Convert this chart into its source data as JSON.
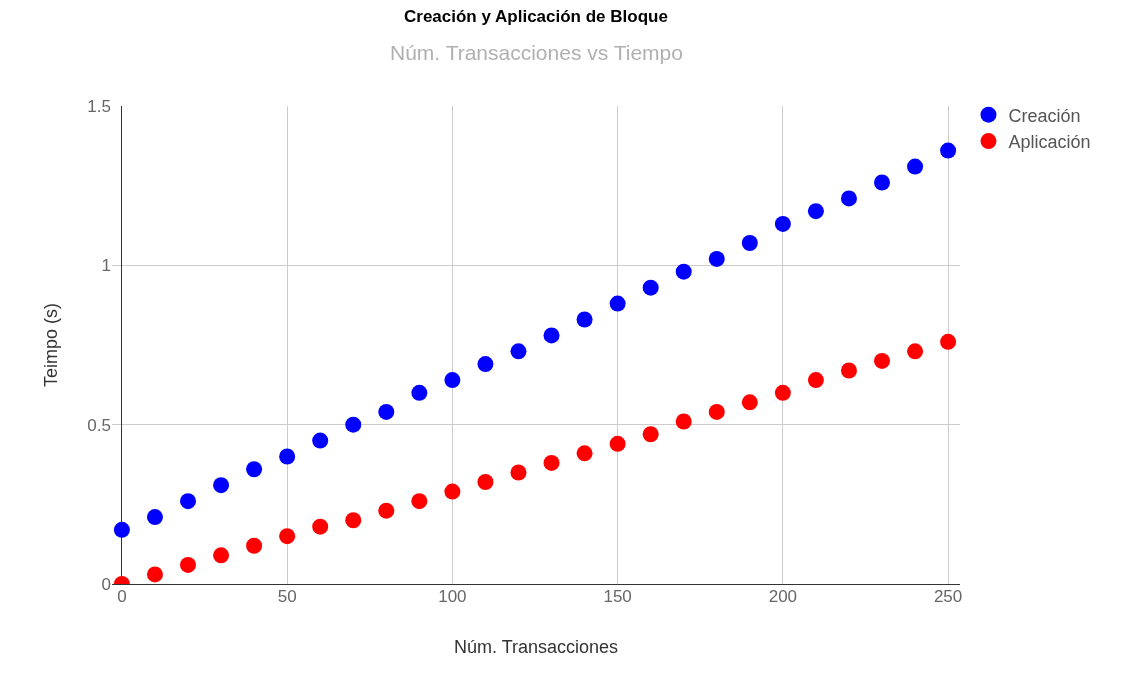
{
  "chart_data": {
    "type": "scatter",
    "title": "Creación y Aplicación de Bloque",
    "subtitle": "Núm. Transacciones vs Tiempo",
    "xlabel": "Núm. Transacciones",
    "ylabel": "Teimpo (s)",
    "x": [
      0,
      10,
      20,
      30,
      40,
      50,
      60,
      70,
      80,
      90,
      100,
      110,
      120,
      130,
      140,
      150,
      160,
      170,
      180,
      190,
      200,
      210,
      220,
      230,
      240,
      250
    ],
    "series": [
      {
        "name": "Creación",
        "color": "#0000ff",
        "values": [
          0.17,
          0.21,
          0.26,
          0.31,
          0.36,
          0.4,
          0.45,
          0.5,
          0.54,
          0.6,
          0.64,
          0.69,
          0.73,
          0.78,
          0.83,
          0.88,
          0.93,
          0.98,
          1.02,
          1.07,
          1.13,
          1.17,
          1.21,
          1.26,
          1.31,
          1.36
        ]
      },
      {
        "name": "Aplicación",
        "color": "#ff0000",
        "values": [
          0.0,
          0.03,
          0.06,
          0.09,
          0.12,
          0.15,
          0.18,
          0.2,
          0.23,
          0.26,
          0.29,
          0.32,
          0.35,
          0.38,
          0.41,
          0.44,
          0.47,
          0.51,
          0.54,
          0.57,
          0.6,
          0.64,
          0.67,
          0.7,
          0.73,
          0.76
        ]
      }
    ],
    "xlim": [
      -3,
      253.6
    ],
    "ylim": [
      0,
      1.5
    ],
    "xticks": [
      0,
      50,
      100,
      150,
      200,
      250
    ],
    "yticks": [
      0,
      {
        "value": 0.5,
        "label": "0.5"
      },
      1,
      {
        "value": 1.5,
        "label": "1.5"
      }
    ],
    "grid": true,
    "legend": "top right",
    "marker": "circle"
  }
}
